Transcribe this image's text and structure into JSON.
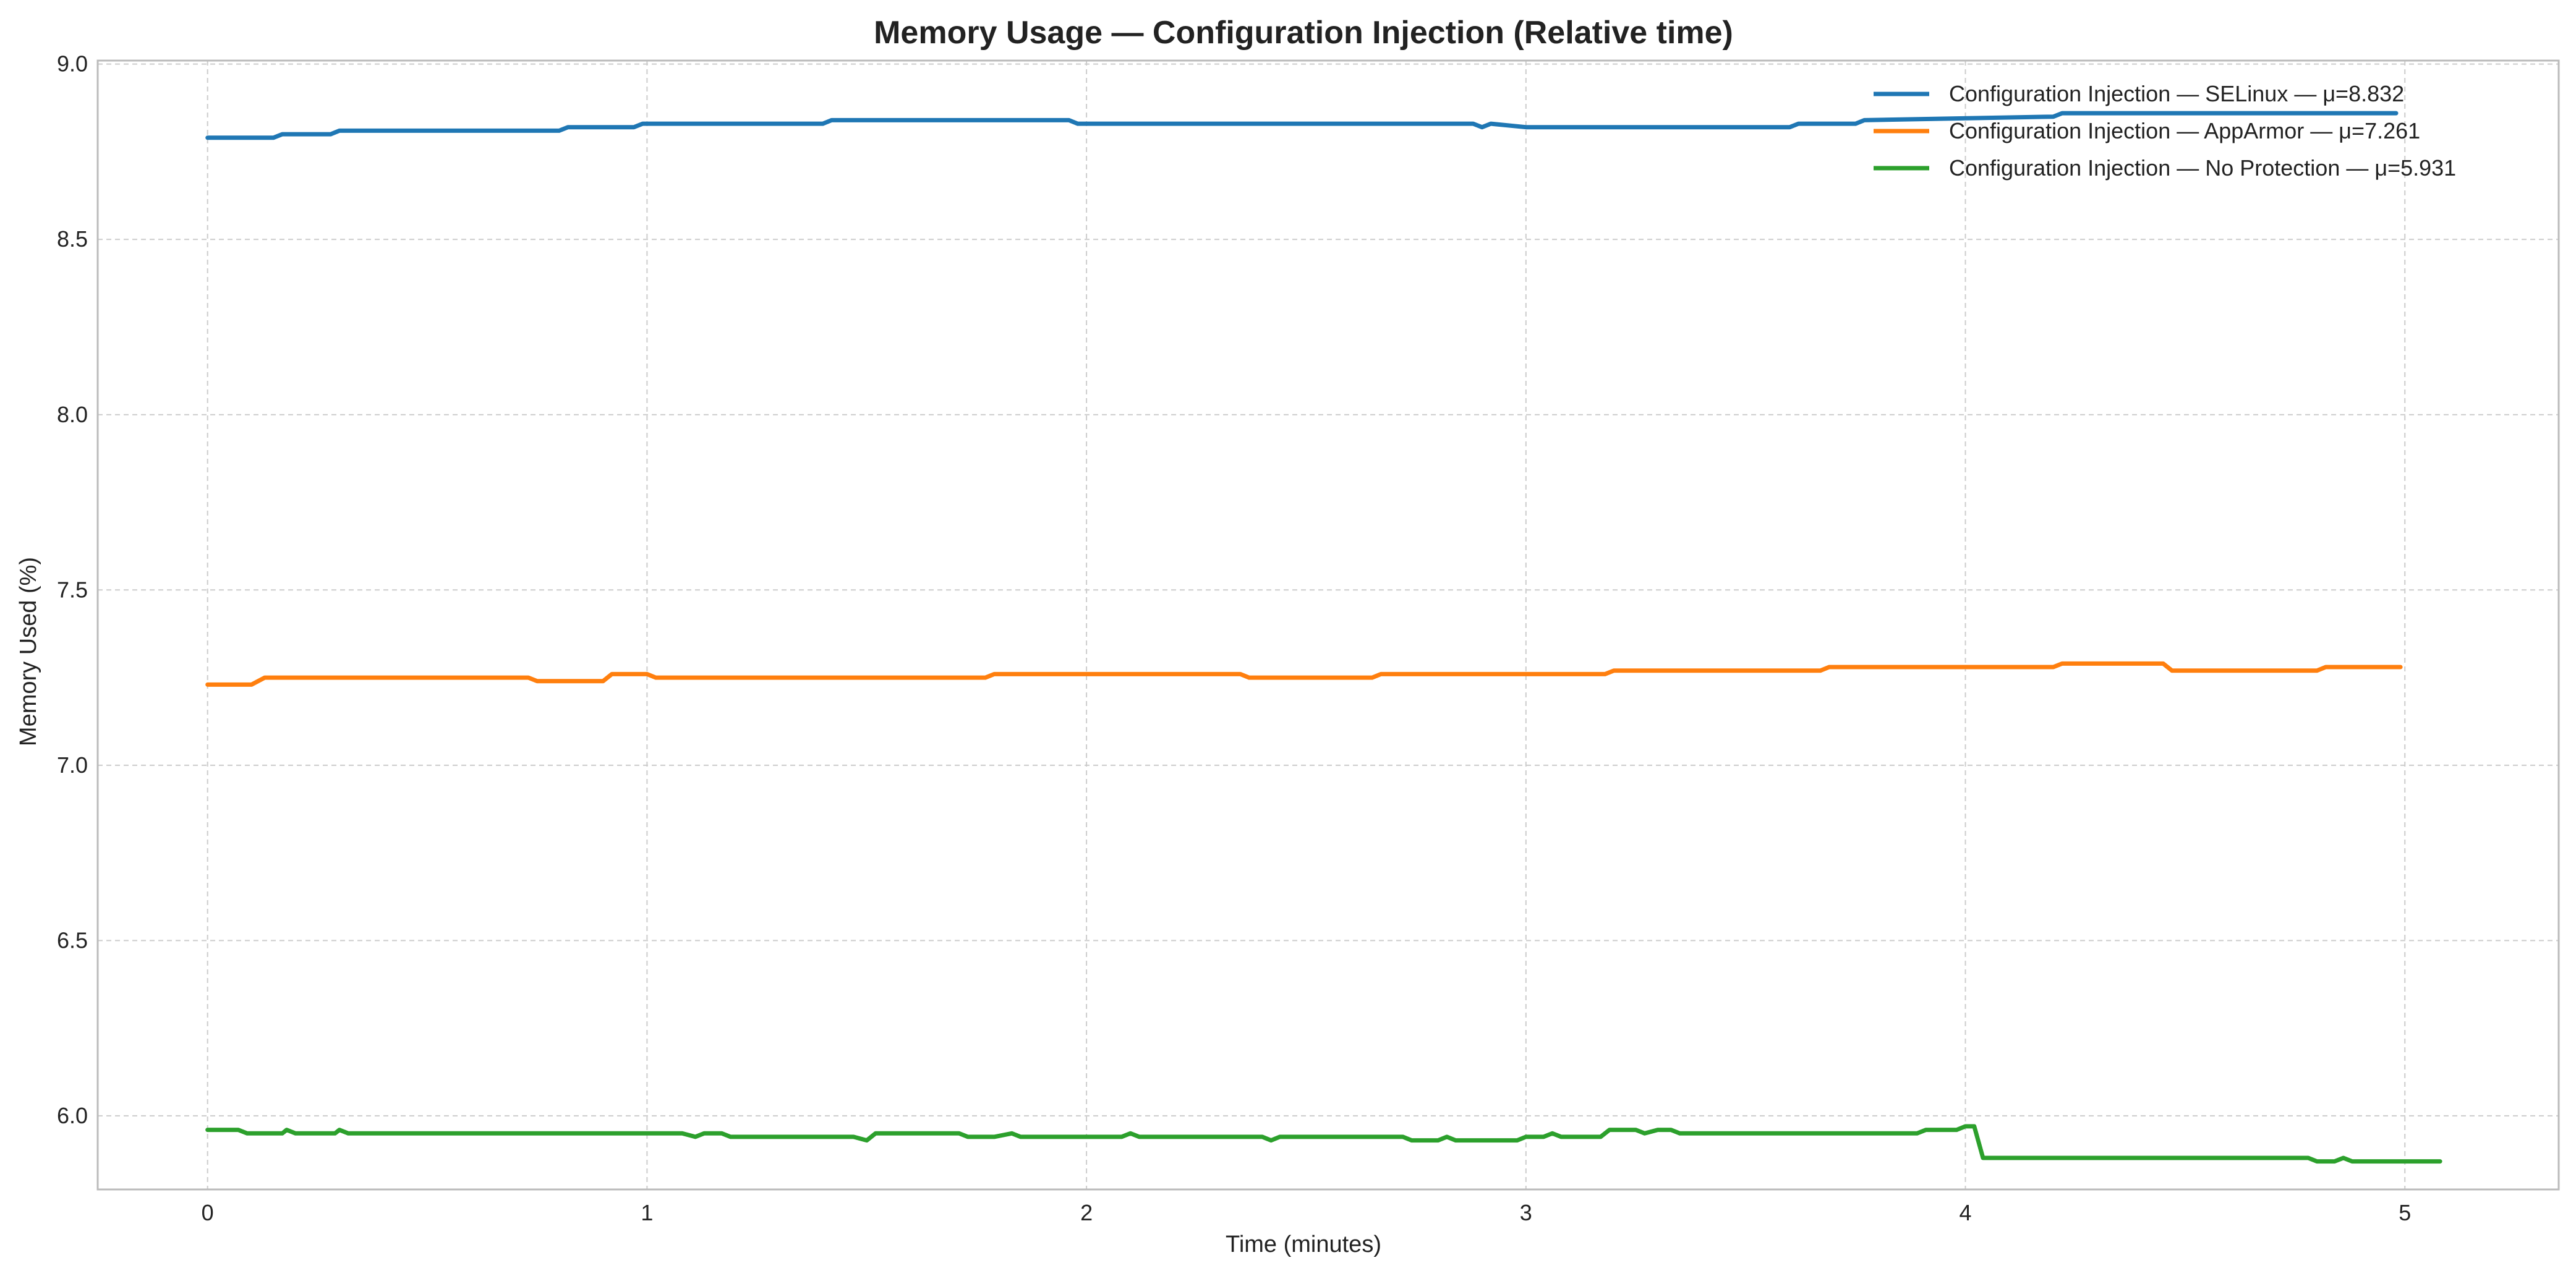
{
  "chart_data": {
    "type": "line",
    "title": "Memory Usage — Configuration Injection (Relative time)",
    "xlabel": "Time (minutes)",
    "ylabel": "Memory Used (%)",
    "xlim": [
      -0.25,
      5.35
    ],
    "ylim": [
      5.79,
      9.01
    ],
    "xticks": [
      0,
      1,
      2,
      3,
      4,
      5
    ],
    "yticks": [
      6.0,
      6.5,
      7.0,
      7.5,
      8.0,
      8.5,
      9.0
    ],
    "xtick_labels": [
      "0",
      "1",
      "2",
      "3",
      "4",
      "5"
    ],
    "ytick_labels": [
      "6.0",
      "6.5",
      "7.0",
      "7.5",
      "8.0",
      "8.5",
      "9.0"
    ],
    "grid": true,
    "legend_position": "top-right",
    "series": [
      {
        "name": "Configuration Injection — SELinux — μ=8.832",
        "color": "#1f77b4",
        "x": [
          0,
          0.15,
          0.17,
          0.28,
          0.3,
          0.8,
          0.82,
          0.97,
          0.99,
          1.4,
          1.42,
          1.96,
          1.98,
          2.88,
          2.9,
          2.92,
          3.0,
          3.6,
          3.62,
          3.75,
          3.77,
          4.2,
          4.22,
          4.98
        ],
        "y": [
          8.79,
          8.79,
          8.8,
          8.8,
          8.81,
          8.81,
          8.82,
          8.82,
          8.83,
          8.83,
          8.84,
          8.84,
          8.83,
          8.83,
          8.82,
          8.83,
          8.82,
          8.82,
          8.83,
          8.83,
          8.84,
          8.85,
          8.86,
          8.86
        ]
      },
      {
        "name": "Configuration Injection — AppArmor — μ=7.261",
        "color": "#ff7f0e",
        "x": [
          0,
          0.1,
          0.13,
          0.73,
          0.75,
          0.9,
          0.92,
          1.0,
          1.02,
          1.77,
          1.79,
          2.35,
          2.37,
          2.65,
          2.67,
          3.18,
          3.2,
          3.67,
          3.69,
          4.2,
          4.22,
          4.45,
          4.47,
          4.8,
          4.82,
          4.99
        ],
        "y": [
          7.23,
          7.23,
          7.25,
          7.25,
          7.24,
          7.24,
          7.26,
          7.26,
          7.25,
          7.25,
          7.26,
          7.26,
          7.25,
          7.25,
          7.26,
          7.26,
          7.27,
          7.27,
          7.28,
          7.28,
          7.29,
          7.29,
          7.27,
          7.27,
          7.28,
          7.28
        ]
      },
      {
        "name": "Configuration Injection — No Protection — μ=5.931",
        "color": "#2ca02c",
        "x": [
          0,
          0.07,
          0.09,
          0.17,
          0.18,
          0.2,
          0.29,
          0.3,
          0.32,
          1.08,
          1.11,
          1.13,
          1.17,
          1.19,
          1.47,
          1.5,
          1.52,
          1.71,
          1.73,
          1.79,
          1.83,
          1.85,
          2.08,
          2.1,
          2.12,
          2.4,
          2.42,
          2.44,
          2.72,
          2.74,
          2.8,
          2.82,
          2.84,
          2.98,
          3.0,
          3.04,
          3.06,
          3.08,
          3.17,
          3.19,
          3.25,
          3.27,
          3.3,
          3.33,
          3.35,
          3.89,
          3.91,
          3.98,
          4.0,
          4.02,
          4.04,
          4.78,
          4.8,
          4.84,
          4.86,
          4.88,
          5.08
        ],
        "y": [
          5.96,
          5.96,
          5.95,
          5.95,
          5.96,
          5.95,
          5.95,
          5.96,
          5.95,
          5.95,
          5.94,
          5.95,
          5.95,
          5.94,
          5.94,
          5.93,
          5.95,
          5.95,
          5.94,
          5.94,
          5.95,
          5.94,
          5.94,
          5.95,
          5.94,
          5.94,
          5.93,
          5.94,
          5.94,
          5.93,
          5.93,
          5.94,
          5.93,
          5.93,
          5.94,
          5.94,
          5.95,
          5.94,
          5.94,
          5.96,
          5.96,
          5.95,
          5.96,
          5.96,
          5.95,
          5.95,
          5.96,
          5.96,
          5.97,
          5.97,
          5.88,
          5.88,
          5.87,
          5.87,
          5.88,
          5.87,
          5.87
        ]
      }
    ]
  }
}
